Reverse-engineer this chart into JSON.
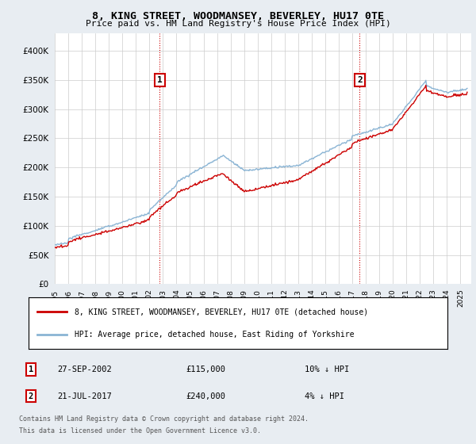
{
  "title": "8, KING STREET, WOODMANSEY, BEVERLEY, HU17 0TE",
  "subtitle": "Price paid vs. HM Land Registry's House Price Index (HPI)",
  "ytick_values": [
    0,
    50000,
    100000,
    150000,
    200000,
    250000,
    300000,
    350000,
    400000
  ],
  "ylim": [
    0,
    430000
  ],
  "xlim_start": 1995.0,
  "xlim_end": 2025.8,
  "hpi_color": "#8ab4d4",
  "price_color": "#cc0000",
  "transaction1_year": 2002.75,
  "transaction1_value": 115000,
  "transaction1_date": "27-SEP-2002",
  "transaction1_price": "£115,000",
  "transaction1_hpi": "10% ↓ HPI",
  "transaction2_year": 2017.55,
  "transaction2_value": 240000,
  "transaction2_date": "21-JUL-2017",
  "transaction2_price": "£240,000",
  "transaction2_hpi": "4% ↓ HPI",
  "legend_label1": "8, KING STREET, WOODMANSEY, BEVERLEY, HU17 0TE (detached house)",
  "legend_label2": "HPI: Average price, detached house, East Riding of Yorkshire",
  "footer1": "Contains HM Land Registry data © Crown copyright and database right 2024.",
  "footer2": "This data is licensed under the Open Government Licence v3.0.",
  "background_color": "#e8edf2",
  "plot_bg_color": "#ffffff"
}
